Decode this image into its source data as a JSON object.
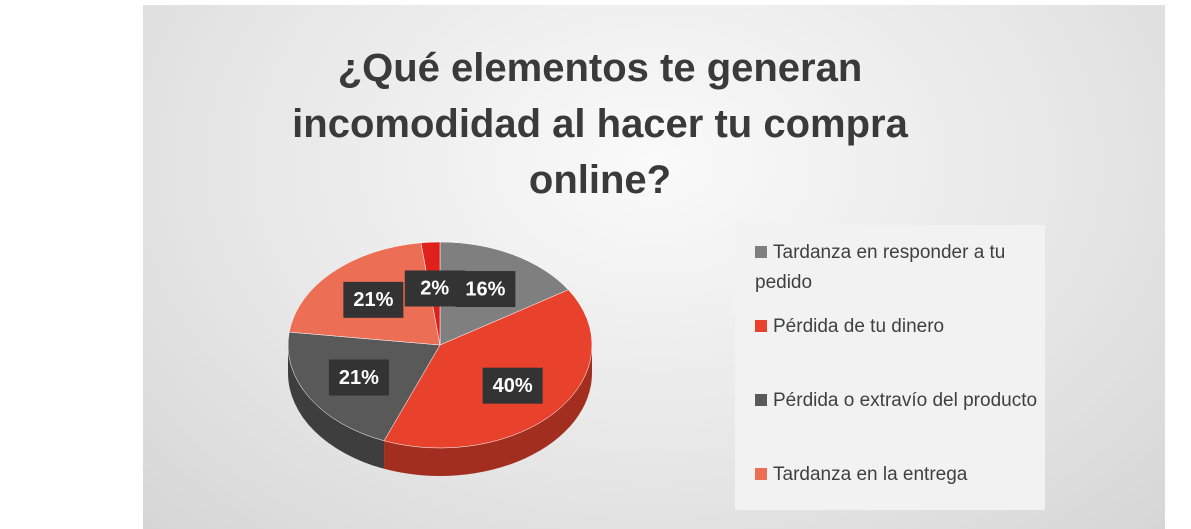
{
  "chart_data": {
    "type": "pie",
    "title": "¿Qué elementos te generan incomodidad al hacer tu compra online?",
    "categories": [
      "Tardanza en responder a tu pedido",
      "Pérdida de tu dinero",
      "Pérdida o extravío del producto",
      "Tardanza en la entrega",
      null
    ],
    "values": [
      16,
      40,
      21,
      21,
      2
    ],
    "value_labels": [
      "16%",
      "40%",
      "21%",
      "21%",
      "2%"
    ],
    "colors": [
      "#7f7f7f",
      "#e8412c",
      "#595959",
      "#ec6f55",
      "#e0201b"
    ],
    "legend": "right"
  }
}
